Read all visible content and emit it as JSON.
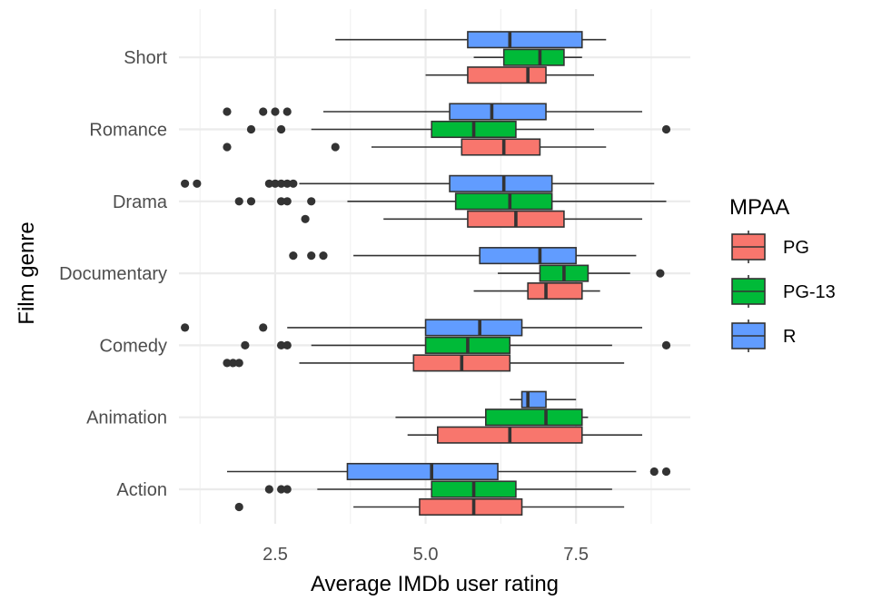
{
  "chart_data": {
    "type": "boxplot",
    "orientation": "horizontal",
    "title": "",
    "xlabel": "Average IMDb user rating",
    "ylabel": "Film genre",
    "xlim": [
      0.9,
      9.4
    ],
    "x_ticks": [
      2.5,
      5.0,
      7.5
    ],
    "x_tick_labels": [
      "2.5",
      "5.0",
      "7.5"
    ],
    "categories": [
      "Action",
      "Animation",
      "Comedy",
      "Documentary",
      "Drama",
      "Romance",
      "Short"
    ],
    "grid": true,
    "legend": {
      "title": "MPAA",
      "position": "right",
      "entries": [
        "PG",
        "PG-13",
        "R"
      ]
    },
    "series": [
      {
        "name": "PG",
        "color": "#F8766D",
        "boxes": [
          {
            "category": "Action",
            "whisker_low": 3.8,
            "q1": 4.9,
            "median": 5.8,
            "q3": 6.6,
            "whisker_high": 8.3,
            "outliers": [
              1.9
            ]
          },
          {
            "category": "Animation",
            "whisker_low": 4.7,
            "q1": 5.2,
            "median": 6.4,
            "q3": 7.6,
            "whisker_high": 8.6,
            "outliers": []
          },
          {
            "category": "Comedy",
            "whisker_low": 2.9,
            "q1": 4.8,
            "median": 5.6,
            "q3": 6.4,
            "whisker_high": 8.3,
            "outliers": [
              1.7,
              1.8,
              1.9
            ]
          },
          {
            "category": "Documentary",
            "whisker_low": 5.8,
            "q1": 6.7,
            "median": 7.0,
            "q3": 7.6,
            "whisker_high": 7.9,
            "outliers": []
          },
          {
            "category": "Drama",
            "whisker_low": 4.3,
            "q1": 5.7,
            "median": 6.5,
            "q3": 7.3,
            "whisker_high": 8.6,
            "outliers": [
              3.0
            ]
          },
          {
            "category": "Romance",
            "whisker_low": 4.1,
            "q1": 5.6,
            "median": 6.3,
            "q3": 6.9,
            "whisker_high": 8.0,
            "outliers": [
              1.7,
              3.5
            ]
          },
          {
            "category": "Short",
            "whisker_low": 5.0,
            "q1": 5.7,
            "median": 6.7,
            "q3": 7.0,
            "whisker_high": 7.8,
            "outliers": []
          }
        ]
      },
      {
        "name": "PG-13",
        "color": "#00BA38",
        "boxes": [
          {
            "category": "Action",
            "whisker_low": 3.2,
            "q1": 5.1,
            "median": 5.8,
            "q3": 6.5,
            "whisker_high": 8.1,
            "outliers": [
              2.4,
              2.6,
              2.7
            ]
          },
          {
            "category": "Animation",
            "whisker_low": 4.5,
            "q1": 6.0,
            "median": 7.0,
            "q3": 7.6,
            "whisker_high": 7.7,
            "outliers": []
          },
          {
            "category": "Comedy",
            "whisker_low": 3.1,
            "q1": 5.0,
            "median": 5.7,
            "q3": 6.4,
            "whisker_high": 8.1,
            "outliers": [
              2.0,
              2.6,
              2.7,
              9.0
            ]
          },
          {
            "category": "Documentary",
            "whisker_low": 6.2,
            "q1": 6.9,
            "median": 7.3,
            "q3": 7.7,
            "whisker_high": 8.4,
            "outliers": [
              8.9
            ]
          },
          {
            "category": "Drama",
            "whisker_low": 3.7,
            "q1": 5.5,
            "median": 6.4,
            "q3": 7.1,
            "whisker_high": 9.0,
            "outliers": [
              1.9,
              2.1,
              2.6,
              2.7,
              3.1
            ]
          },
          {
            "category": "Romance",
            "whisker_low": 3.1,
            "q1": 5.1,
            "median": 5.8,
            "q3": 6.5,
            "whisker_high": 7.8,
            "outliers": [
              2.1,
              2.6,
              9.0
            ]
          },
          {
            "category": "Short",
            "whisker_low": 5.8,
            "q1": 6.3,
            "median": 6.9,
            "q3": 7.3,
            "whisker_high": 7.6,
            "outliers": []
          }
        ]
      },
      {
        "name": "R",
        "color": "#619CFF",
        "boxes": [
          {
            "category": "Action",
            "whisker_low": 1.7,
            "q1": 3.7,
            "median": 5.1,
            "q3": 6.2,
            "whisker_high": 8.5,
            "outliers": [
              8.8,
              9.0
            ]
          },
          {
            "category": "Animation",
            "whisker_low": 6.4,
            "q1": 6.6,
            "median": 6.7,
            "q3": 7.0,
            "whisker_high": 7.5,
            "outliers": []
          },
          {
            "category": "Comedy",
            "whisker_low": 2.7,
            "q1": 5.0,
            "median": 5.9,
            "q3": 6.6,
            "whisker_high": 8.6,
            "outliers": [
              1.0,
              2.3
            ]
          },
          {
            "category": "Documentary",
            "whisker_low": 3.8,
            "q1": 5.9,
            "median": 6.9,
            "q3": 7.5,
            "whisker_high": 8.5,
            "outliers": [
              2.8,
              3.1,
              3.3
            ]
          },
          {
            "category": "Drama",
            "whisker_low": 2.9,
            "q1": 5.4,
            "median": 6.3,
            "q3": 7.1,
            "whisker_high": 8.8,
            "outliers": [
              1.0,
              1.2,
              2.4,
              2.5,
              2.6,
              2.7,
              2.8
            ]
          },
          {
            "category": "Romance",
            "whisker_low": 3.3,
            "q1": 5.4,
            "median": 6.1,
            "q3": 7.0,
            "whisker_high": 8.6,
            "outliers": [
              1.7,
              2.3,
              2.5,
              2.7
            ]
          },
          {
            "category": "Short",
            "whisker_low": 3.5,
            "q1": 5.7,
            "median": 6.4,
            "q3": 7.6,
            "whisker_high": 8.0,
            "outliers": []
          }
        ]
      }
    ]
  }
}
